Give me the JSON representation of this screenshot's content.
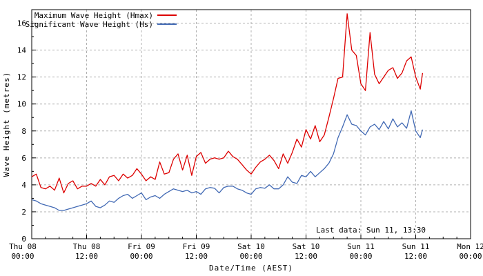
{
  "chart_data": {
    "type": "line",
    "title": "",
    "xlabel": "Date/Time (AEST)",
    "ylabel": "Wave Height (metres)",
    "xlim_hours": [
      0,
      96
    ],
    "ylim": [
      0,
      17
    ],
    "x_major_tick_hours": 12,
    "x_minor_tick_hours": 3,
    "y_major_tick": 2,
    "y_minor_tick": 1,
    "grid": true,
    "grid_color": "#b0b0b0",
    "axis_color": "#000000",
    "legend_position": "top-left-inside",
    "annotation": {
      "text": "Last data: Sun 11, 13:30"
    },
    "x_tick_labels": [
      {
        "hour": 0,
        "line1": "Thu 08",
        "line2": "00:00"
      },
      {
        "hour": 12,
        "line1": "Thu 08",
        "line2": "12:00"
      },
      {
        "hour": 24,
        "line1": "Fri 09",
        "line2": "00:00"
      },
      {
        "hour": 36,
        "line1": "Fri 09",
        "line2": "12:00"
      },
      {
        "hour": 48,
        "line1": "Sat 10",
        "line2": "00:00"
      },
      {
        "hour": 60,
        "line1": "Sat 10",
        "line2": "12:00"
      },
      {
        "hour": 72,
        "line1": "Sun 11",
        "line2": "00:00"
      },
      {
        "hour": 84,
        "line1": "Sun 11",
        "line2": "12:00"
      },
      {
        "hour": 96,
        "line1": "Mon 12",
        "line2": "00:00"
      }
    ],
    "y_tick_labels": [
      "0",
      "2",
      "4",
      "6",
      "8",
      "10",
      "12",
      "14",
      "16"
    ],
    "x_hours": [
      0,
      1,
      2,
      3,
      4,
      5,
      6,
      7,
      8,
      9,
      10,
      11,
      12,
      13,
      14,
      15,
      16,
      17,
      18,
      19,
      20,
      21,
      22,
      23,
      24,
      25,
      26,
      27,
      28,
      29,
      30,
      31,
      32,
      33,
      34,
      35,
      36,
      37,
      38,
      39,
      40,
      41,
      42,
      43,
      44,
      45,
      46,
      47,
      48,
      49,
      50,
      51,
      52,
      53,
      54,
      55,
      56,
      57,
      58,
      59,
      60,
      61,
      62,
      63,
      64,
      65,
      66,
      67,
      68,
      69,
      70,
      71,
      72,
      73,
      74,
      75,
      76,
      77,
      78,
      79,
      80,
      81,
      82,
      83,
      84,
      85,
      85.5
    ],
    "series": [
      {
        "id": "hmax",
        "name": "Maximum Wave Height (Hmax)",
        "color": "#dd0000",
        "values": [
          4.6,
          4.8,
          3.8,
          3.7,
          3.9,
          3.6,
          4.5,
          3.4,
          4.1,
          4.3,
          3.7,
          3.9,
          3.9,
          4.1,
          3.9,
          4.4,
          4.0,
          4.6,
          4.7,
          4.3,
          4.8,
          4.5,
          4.7,
          5.2,
          4.8,
          4.3,
          4.6,
          4.4,
          5.7,
          4.8,
          4.9,
          5.9,
          6.3,
          5.1,
          6.2,
          4.7,
          6.1,
          6.4,
          5.6,
          5.9,
          6.0,
          5.9,
          6.0,
          6.5,
          6.1,
          5.9,
          5.5,
          5.1,
          4.8,
          5.3,
          5.7,
          5.9,
          6.2,
          5.8,
          5.2,
          6.3,
          5.6,
          6.4,
          7.4,
          6.8,
          8.1,
          7.4,
          8.4,
          7.2,
          7.7,
          9.0,
          10.4,
          11.9,
          12.0,
          16.7,
          14.0,
          13.6,
          11.5,
          11.0,
          15.3,
          12.2,
          11.5,
          12.0,
          12.5,
          12.7,
          11.9,
          12.3,
          13.2,
          13.5,
          12.0,
          11.1,
          12.3
        ]
      },
      {
        "id": "hs",
        "name": "Significant Wave Height (Hs)",
        "color": "#4169b4",
        "values": [
          2.9,
          2.8,
          2.6,
          2.5,
          2.4,
          2.3,
          2.1,
          2.1,
          2.2,
          2.3,
          2.4,
          2.5,
          2.6,
          2.8,
          2.4,
          2.3,
          2.5,
          2.8,
          2.7,
          3.0,
          3.2,
          3.3,
          3.0,
          3.2,
          3.4,
          2.9,
          3.1,
          3.2,
          3.0,
          3.3,
          3.5,
          3.7,
          3.6,
          3.5,
          3.6,
          3.4,
          3.5,
          3.3,
          3.7,
          3.8,
          3.75,
          3.4,
          3.8,
          3.9,
          3.9,
          3.7,
          3.6,
          3.4,
          3.3,
          3.7,
          3.8,
          3.75,
          4.0,
          3.7,
          3.7,
          4.0,
          4.6,
          4.2,
          4.1,
          4.7,
          4.6,
          5.0,
          4.6,
          4.9,
          5.2,
          5.6,
          6.3,
          7.5,
          8.3,
          9.2,
          8.5,
          8.4,
          8.0,
          7.7,
          8.3,
          8.5,
          8.1,
          8.7,
          8.15,
          8.9,
          8.3,
          8.6,
          8.2,
          9.5,
          8.0,
          7.5,
          8.1
        ]
      }
    ]
  }
}
